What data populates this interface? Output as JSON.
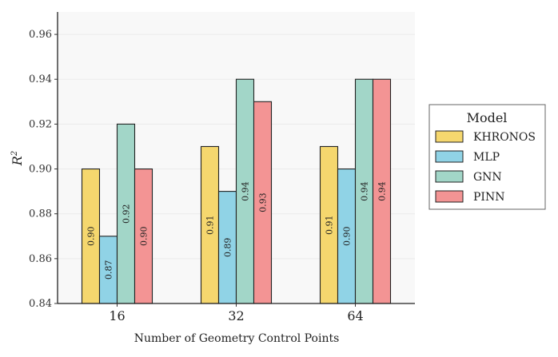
{
  "chart_data": {
    "type": "bar",
    "title": "",
    "xlabel": "Number of Geometry Control Points",
    "ylabel": "R",
    "ylabel_superscript": "2",
    "ylim": [
      0.84,
      0.97
    ],
    "yticks": [
      "0.84",
      "0.86",
      "0.88",
      "0.90",
      "0.92",
      "0.94",
      "0.96"
    ],
    "categories": [
      "16",
      "32",
      "64"
    ],
    "series": [
      {
        "name": "KHRONOS",
        "color": "#f5d76e",
        "values": [
          0.9,
          0.91,
          0.91
        ],
        "labels": [
          "0.90",
          "0.91",
          "0.91"
        ]
      },
      {
        "name": "MLP",
        "color": "#90d3e6",
        "values": [
          0.87,
          0.89,
          0.9
        ],
        "labels": [
          "0.87",
          "0.89",
          "0.90"
        ]
      },
      {
        "name": "GNN",
        "color": "#a2d6c8",
        "values": [
          0.92,
          0.94,
          0.94
        ],
        "labels": [
          "0.92",
          "0.94",
          "0.94"
        ]
      },
      {
        "name": "PINN",
        "color": "#f39494",
        "values": [
          0.9,
          0.93,
          0.94
        ],
        "labels": [
          "0.90",
          "0.93",
          "0.94"
        ]
      }
    ],
    "legend": {
      "title": "Model",
      "position": "right"
    },
    "grid": true
  }
}
